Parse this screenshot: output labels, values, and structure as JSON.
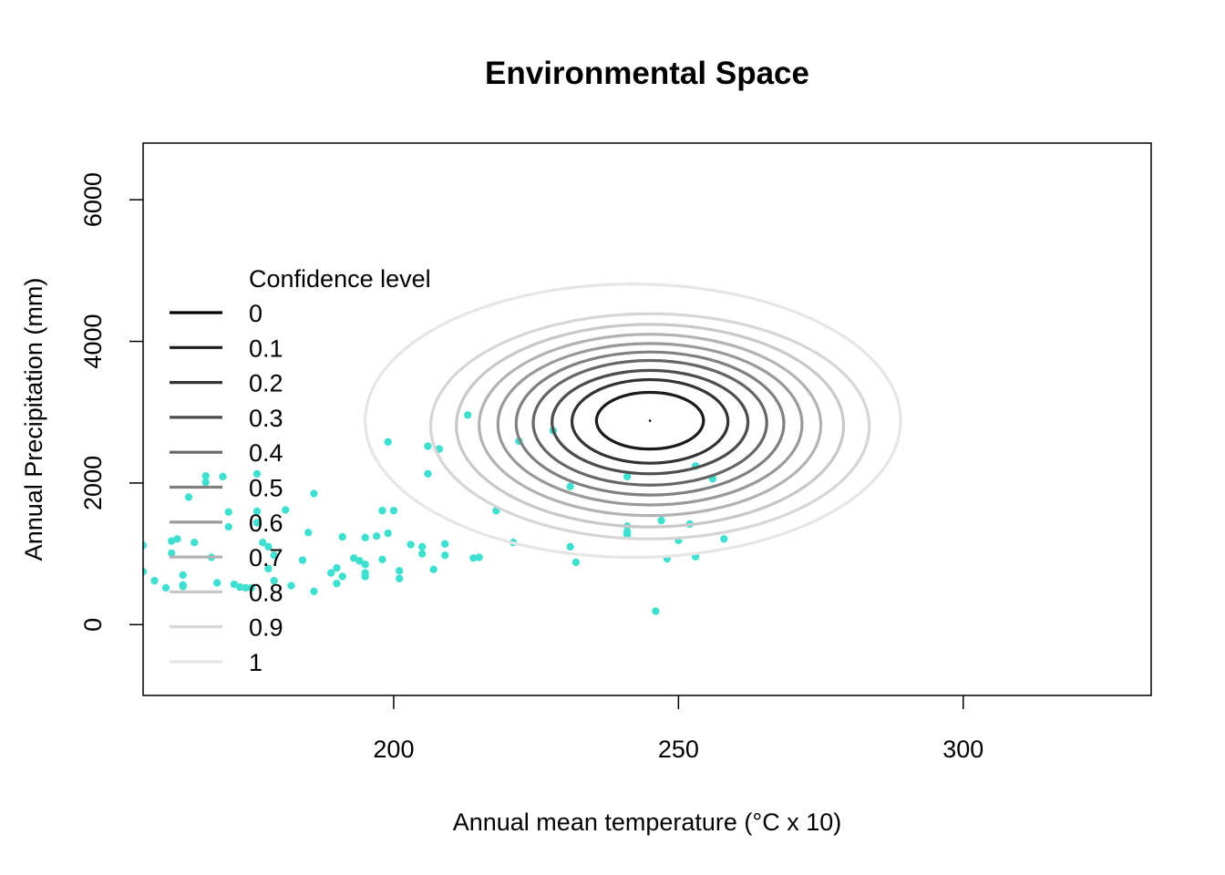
{
  "chart_data": {
    "type": "scatter",
    "title": "Environmental Space",
    "xlabel": "Annual mean temperature (°C x 10)",
    "ylabel": "Annual Precipitation (mm)",
    "xlim": [
      156,
      333
    ],
    "ylim": [
      -1000,
      6800
    ],
    "xticks": [
      "200",
      "250",
      "300"
    ],
    "yticks": [
      "0",
      "2000",
      "4000",
      "6000"
    ],
    "x_tick_values": [
      200,
      250,
      300
    ],
    "y_tick_values": [
      0,
      2000,
      4000,
      6000
    ],
    "point_color": "#40E0D0",
    "points": [
      [
        156,
        1120
      ],
      [
        156,
        750
      ],
      [
        158,
        620
      ],
      [
        160,
        520
      ],
      [
        161,
        1180
      ],
      [
        161,
        1010
      ],
      [
        162,
        1210
      ],
      [
        163,
        700
      ],
      [
        163,
        560
      ],
      [
        163,
        540
      ],
      [
        164,
        1800
      ],
      [
        165,
        1160
      ],
      [
        167,
        2100
      ],
      [
        167,
        2010
      ],
      [
        168,
        950
      ],
      [
        169,
        590
      ],
      [
        170,
        2090
      ],
      [
        171,
        1380
      ],
      [
        171,
        1590
      ],
      [
        172,
        570
      ],
      [
        173,
        530
      ],
      [
        174,
        520
      ],
      [
        175,
        520
      ],
      [
        176,
        1440
      ],
      [
        176,
        2130
      ],
      [
        176,
        1600
      ],
      [
        177,
        1160
      ],
      [
        178,
        1100
      ],
      [
        178,
        790
      ],
      [
        179,
        980
      ],
      [
        179,
        620
      ],
      [
        181,
        1620
      ],
      [
        182,
        550
      ],
      [
        184,
        910
      ],
      [
        185,
        1300
      ],
      [
        186,
        1850
      ],
      [
        186,
        470
      ],
      [
        189,
        730
      ],
      [
        190,
        580
      ],
      [
        190,
        800
      ],
      [
        191,
        1240
      ],
      [
        191,
        680
      ],
      [
        193,
        940
      ],
      [
        194,
        900
      ],
      [
        195,
        850
      ],
      [
        195,
        730
      ],
      [
        195,
        680
      ],
      [
        195,
        1230
      ],
      [
        197,
        1250
      ],
      [
        198,
        1610
      ],
      [
        198,
        920
      ],
      [
        199,
        2580
      ],
      [
        199,
        1290
      ],
      [
        200,
        1610
      ],
      [
        201,
        650
      ],
      [
        201,
        760
      ],
      [
        203,
        1130
      ],
      [
        205,
        1000
      ],
      [
        205,
        1100
      ],
      [
        206,
        2520
      ],
      [
        206,
        2130
      ],
      [
        207,
        780
      ],
      [
        208,
        2480
      ],
      [
        209,
        1140
      ],
      [
        209,
        980
      ],
      [
        213,
        2960
      ],
      [
        214,
        940
      ],
      [
        215,
        950
      ],
      [
        218,
        1610
      ],
      [
        221,
        1160
      ],
      [
        222,
        2590
      ],
      [
        228,
        2740
      ],
      [
        231,
        1950
      ],
      [
        231,
        1100
      ],
      [
        232,
        880
      ],
      [
        241,
        2090
      ],
      [
        241,
        1390
      ],
      [
        241,
        1310
      ],
      [
        241,
        1270
      ],
      [
        246,
        190
      ],
      [
        247,
        1470
      ],
      [
        248,
        930
      ],
      [
        250,
        1190
      ],
      [
        252,
        1420
      ],
      [
        253,
        2240
      ],
      [
        253,
        960
      ],
      [
        256,
        2060
      ],
      [
        258,
        1210
      ]
    ],
    "contours": {
      "center": [
        245,
        2880
      ],
      "levels": [
        0,
        0.1,
        0.2,
        0.3,
        0.4,
        0.5,
        0.6,
        0.7,
        0.8,
        0.9,
        1
      ],
      "colors": [
        "#000000",
        "#1a1a1a",
        "#333333",
        "#4d4d4d",
        "#666666",
        "#808080",
        "#999999",
        "#b3b3b3",
        "#c8c8c8",
        "#d6d6d6",
        "#e6e6e6"
      ],
      "ellipses": [
        {
          "level": 0.1,
          "cx": 245,
          "cy": 2880,
          "rx": 9.4,
          "ry": 400
        },
        {
          "level": 0.2,
          "cx": 245,
          "cy": 2870,
          "rx": 13.7,
          "ry": 590
        },
        {
          "level": 0.3,
          "cx": 245,
          "cy": 2860,
          "rx": 17.2,
          "ry": 730
        },
        {
          "level": 0.4,
          "cx": 245,
          "cy": 2850,
          "rx": 20.5,
          "ry": 880
        },
        {
          "level": 0.5,
          "cx": 245,
          "cy": 2840,
          "rx": 23.5,
          "ry": 1010
        },
        {
          "level": 0.6,
          "cx": 245,
          "cy": 2830,
          "rx": 26.7,
          "ry": 1140
        },
        {
          "level": 0.7,
          "cx": 245,
          "cy": 2820,
          "rx": 30.0,
          "ry": 1280
        },
        {
          "level": 0.8,
          "cx": 245,
          "cy": 2810,
          "rx": 34.0,
          "ry": 1430
        },
        {
          "level": 0.9,
          "cx": 245,
          "cy": 2800,
          "rx": 38.5,
          "ry": 1590
        },
        {
          "level": 1,
          "cx": 242,
          "cy": 2880,
          "rx": 47.0,
          "ry": 1930
        }
      ]
    },
    "legend": {
      "title": "Confidence level",
      "position": "left",
      "labels": [
        "0",
        "0.1",
        "0.2",
        "0.3",
        "0.4",
        "0.5",
        "0.6",
        "0.7",
        "0.8",
        "0.9",
        "1"
      ]
    }
  }
}
